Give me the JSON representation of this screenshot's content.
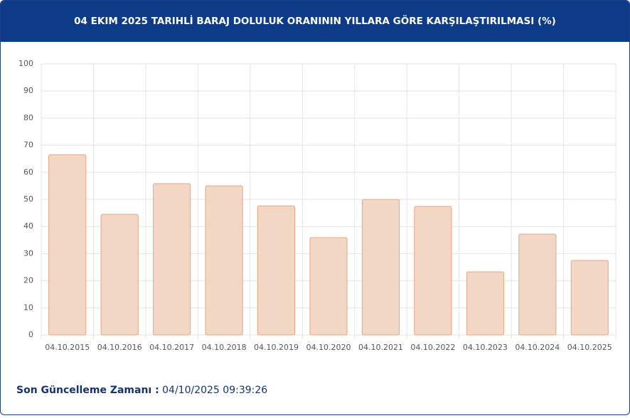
{
  "chart_data": {
    "type": "bar",
    "title": "04 EKIM 2025 TARIHLİ BARAJ DOLULUK ORANININ YILLARA GÖRE KARŞILAŞTIRILMASI (%)",
    "categories": [
      "04.10.2015",
      "04.10.2016",
      "04.10.2017",
      "04.10.2018",
      "04.10.2019",
      "04.10.2020",
      "04.10.2021",
      "04.10.2022",
      "04.10.2023",
      "04.10.2024",
      "04.10.2025"
    ],
    "values": [
      66.5,
      44.5,
      55.8,
      55.0,
      47.6,
      35.9,
      50.0,
      47.4,
      23.3,
      37.2,
      27.5
    ],
    "color": "#f3d7c5",
    "border_color": "#e9a47c",
    "ylim": [
      0,
      100
    ],
    "yticks": [
      0,
      10,
      20,
      30,
      40,
      50,
      60,
      70,
      80,
      90,
      100
    ],
    "grid": true
  },
  "footer": {
    "label": "Son Güncelleme Zamanı :",
    "value": "04/10/2025 09:39:26"
  }
}
